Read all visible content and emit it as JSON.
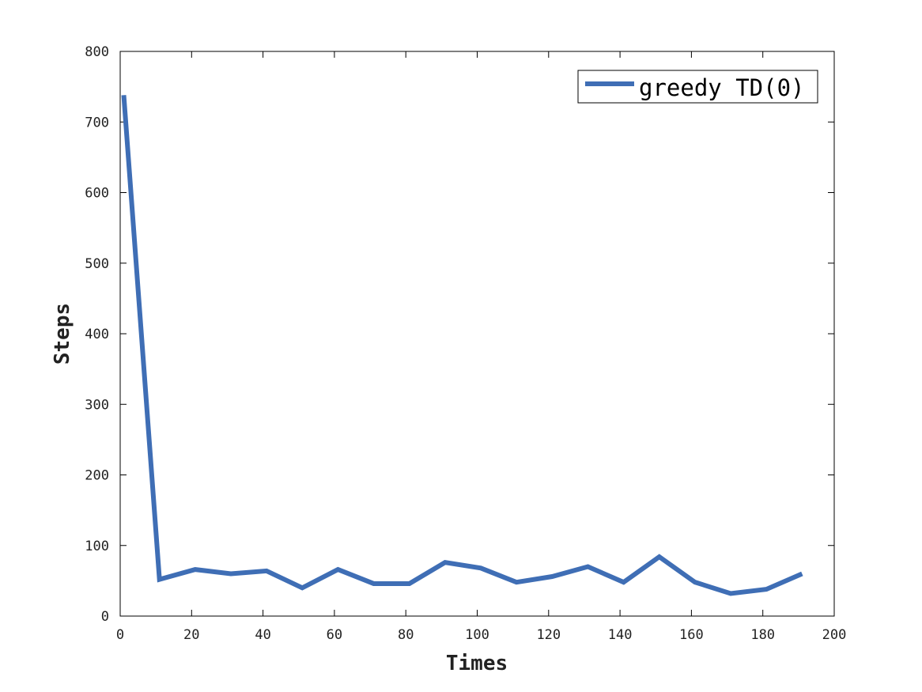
{
  "chart_data": {
    "type": "line",
    "title": "",
    "xlabel": "Times",
    "ylabel": "Steps",
    "xlim": [
      0,
      200
    ],
    "ylim": [
      0,
      800
    ],
    "xticks": [
      0,
      20,
      40,
      60,
      80,
      100,
      120,
      140,
      160,
      180,
      200
    ],
    "yticks": [
      0,
      100,
      200,
      300,
      400,
      500,
      600,
      700,
      800
    ],
    "grid": false,
    "legend_position": "top-right",
    "series": [
      {
        "name": "greedy TD(0)",
        "color": "#3f6eb5",
        "x": [
          1,
          11,
          21,
          31,
          41,
          51,
          61,
          71,
          81,
          91,
          101,
          111,
          121,
          131,
          141,
          151,
          161,
          171,
          181,
          191
        ],
        "y": [
          738,
          52,
          66,
          60,
          64,
          40,
          66,
          46,
          46,
          76,
          68,
          48,
          56,
          70,
          48,
          84,
          48,
          32,
          38,
          60
        ]
      }
    ]
  }
}
